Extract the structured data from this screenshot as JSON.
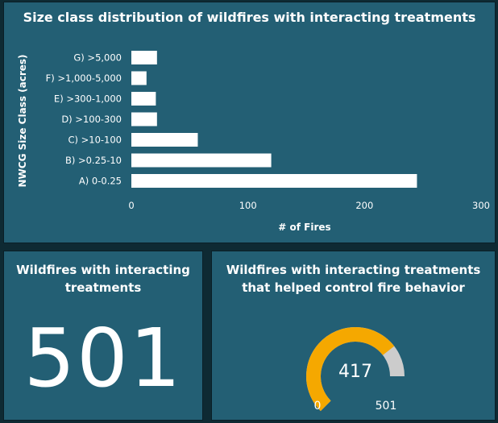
{
  "chart_panel": {
    "title": "Size class distribution of wildfires with interacting treatments"
  },
  "chart_data": {
    "type": "bar",
    "orientation": "horizontal",
    "title": "Size class distribution of wildfires with interacting treatments",
    "xlabel": "# of Fires",
    "ylabel": "NWCG Size Class (acres)",
    "categories": [
      "G) >5,000",
      "F) >1,000-5,000",
      "E) >300-1,000",
      "D) >100-300",
      "C) >10-100",
      "B) >0.25-10",
      "A) 0-0.25"
    ],
    "values": [
      22,
      13,
      21,
      22,
      57,
      120,
      245
    ],
    "xlim": [
      0,
      300
    ],
    "xticks": [
      0,
      100,
      200,
      300
    ],
    "bar_color": "#ffffff",
    "grid": false
  },
  "count_panel": {
    "title": "Wildfires with interacting treatments",
    "value": "501"
  },
  "gauge_panel": {
    "title": "Wildfires with interacting treatments that helped control fire behavior",
    "value": 417,
    "min": 0,
    "max": 501,
    "value_label": "417",
    "min_label": "0",
    "max_label": "501",
    "fill_color": "#f5a800",
    "track_color": "#cccccc"
  }
}
